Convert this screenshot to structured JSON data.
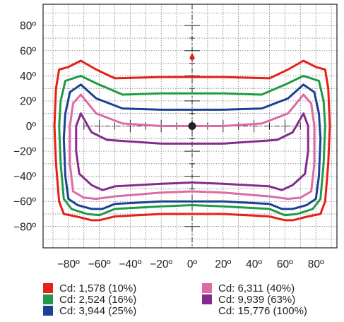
{
  "chart_data": {
    "type": "line",
    "title": "",
    "xlabel": "",
    "ylabel": "",
    "xlim": [
      -95,
      95
    ],
    "ylim": [
      -97,
      97
    ],
    "grid": true,
    "x_ticks": [
      {
        "value": -80,
        "label": "−80º"
      },
      {
        "value": -60,
        "label": "−60º"
      },
      {
        "value": -40,
        "label": "−40º"
      },
      {
        "value": -20,
        "label": "−20º"
      },
      {
        "value": 0,
        "label": "0º"
      },
      {
        "value": 20,
        "label": "20º"
      },
      {
        "value": 40,
        "label": "40º"
      },
      {
        "value": 60,
        "label": "60º"
      },
      {
        "value": 80,
        "label": "80º"
      }
    ],
    "y_ticks": [
      {
        "value": 80,
        "label": "80º"
      },
      {
        "value": 60,
        "label": "60º"
      },
      {
        "value": 40,
        "label": "40º"
      },
      {
        "value": 20,
        "label": "20º"
      },
      {
        "value": 0,
        "label": "0º"
      },
      {
        "value": -20,
        "label": "−20º"
      },
      {
        "value": -40,
        "label": "−40º"
      },
      {
        "value": -60,
        "label": "−60º"
      },
      {
        "value": -80,
        "label": "−80º"
      }
    ],
    "center_point": {
      "x": 0,
      "y": 0,
      "color": "#222222"
    },
    "max_point": {
      "x": 0,
      "y": 55,
      "color": "#e32119"
    },
    "legend_position": "bottom",
    "series": [
      {
        "name": "Cd: 1,578 (10%)",
        "color": "#e32119",
        "points": [
          [
            -72,
            52
          ],
          [
            -80,
            47
          ],
          [
            -86,
            45
          ],
          [
            -88,
            30
          ],
          [
            -89,
            0
          ],
          [
            -88,
            -30
          ],
          [
            -86,
            -60
          ],
          [
            -83,
            -70
          ],
          [
            -75,
            -72
          ],
          [
            -65,
            -75
          ],
          [
            -60,
            -75
          ],
          [
            -50,
            -72
          ],
          [
            -20,
            -70
          ],
          [
            0,
            -70
          ],
          [
            20,
            -70
          ],
          [
            50,
            -72
          ],
          [
            60,
            -75
          ],
          [
            65,
            -75
          ],
          [
            75,
            -72
          ],
          [
            83,
            -70
          ],
          [
            86,
            -60
          ],
          [
            88,
            -30
          ],
          [
            89,
            0
          ],
          [
            88,
            30
          ],
          [
            86,
            45
          ],
          [
            80,
            47
          ],
          [
            72,
            52
          ],
          [
            62,
            45
          ],
          [
            50,
            38
          ],
          [
            20,
            39
          ],
          [
            0,
            39
          ],
          [
            -20,
            39
          ],
          [
            -50,
            38
          ],
          [
            -62,
            45
          ],
          [
            -72,
            52
          ]
        ]
      },
      {
        "name": "Cd: 2,524 (16%)",
        "color": "#1f9a46",
        "points": [
          [
            -72,
            40
          ],
          [
            -82,
            36
          ],
          [
            -85,
            20
          ],
          [
            -86,
            0
          ],
          [
            -85,
            -30
          ],
          [
            -83,
            -58
          ],
          [
            -78,
            -66
          ],
          [
            -68,
            -70
          ],
          [
            -60,
            -71
          ],
          [
            -50,
            -66
          ],
          [
            -20,
            -64
          ],
          [
            0,
            -63
          ],
          [
            20,
            -64
          ],
          [
            50,
            -66
          ],
          [
            60,
            -71
          ],
          [
            68,
            -70
          ],
          [
            78,
            -66
          ],
          [
            83,
            -58
          ],
          [
            85,
            -30
          ],
          [
            86,
            0
          ],
          [
            85,
            20
          ],
          [
            82,
            36
          ],
          [
            72,
            40
          ],
          [
            62,
            34
          ],
          [
            45,
            25
          ],
          [
            20,
            26
          ],
          [
            0,
            26
          ],
          [
            -20,
            26
          ],
          [
            -45,
            25
          ],
          [
            -62,
            34
          ],
          [
            -72,
            40
          ]
        ]
      },
      {
        "name": "Cd: 3,944 (25%)",
        "color": "#1d3f95",
        "points": [
          [
            -72,
            33
          ],
          [
            -79,
            27
          ],
          [
            -82,
            10
          ],
          [
            -83,
            -10
          ],
          [
            -82,
            -40
          ],
          [
            -80,
            -58
          ],
          [
            -74,
            -63
          ],
          [
            -65,
            -66
          ],
          [
            -58,
            -66
          ],
          [
            -50,
            -62
          ],
          [
            -20,
            -60
          ],
          [
            0,
            -60
          ],
          [
            20,
            -60
          ],
          [
            50,
            -62
          ],
          [
            58,
            -66
          ],
          [
            65,
            -66
          ],
          [
            74,
            -63
          ],
          [
            80,
            -58
          ],
          [
            82,
            -40
          ],
          [
            83,
            -10
          ],
          [
            82,
            10
          ],
          [
            79,
            27
          ],
          [
            72,
            33
          ],
          [
            62,
            22
          ],
          [
            45,
            14
          ],
          [
            20,
            13
          ],
          [
            0,
            13
          ],
          [
            -20,
            13
          ],
          [
            -45,
            14
          ],
          [
            -62,
            22
          ],
          [
            -72,
            33
          ]
        ]
      },
      {
        "name": "Cd: 6,311 (40%)",
        "color": "#dc6aa3",
        "points": [
          [
            -72,
            25
          ],
          [
            -77,
            18
          ],
          [
            -79,
            0
          ],
          [
            -79,
            -30
          ],
          [
            -77,
            -52
          ],
          [
            -70,
            -57
          ],
          [
            -62,
            -58
          ],
          [
            -50,
            -56
          ],
          [
            -20,
            -53
          ],
          [
            0,
            -52
          ],
          [
            20,
            -53
          ],
          [
            50,
            -56
          ],
          [
            62,
            -58
          ],
          [
            70,
            -57
          ],
          [
            77,
            -52
          ],
          [
            79,
            -30
          ],
          [
            79,
            0
          ],
          [
            77,
            18
          ],
          [
            72,
            25
          ],
          [
            62,
            10
          ],
          [
            45,
            2
          ],
          [
            20,
            0
          ],
          [
            0,
            0
          ],
          [
            -20,
            0
          ],
          [
            -45,
            2
          ],
          [
            -62,
            10
          ],
          [
            -72,
            25
          ]
        ]
      },
      {
        "name": "Cd: 9,939 (63%)",
        "color": "#862a8e",
        "points": [
          [
            -72,
            10
          ],
          [
            -75,
            0
          ],
          [
            -75,
            -20
          ],
          [
            -73,
            -38
          ],
          [
            -65,
            -47
          ],
          [
            -58,
            -51
          ],
          [
            -50,
            -48
          ],
          [
            -20,
            -46
          ],
          [
            0,
            -45
          ],
          [
            20,
            -46
          ],
          [
            50,
            -48
          ],
          [
            58,
            -51
          ],
          [
            65,
            -47
          ],
          [
            73,
            -38
          ],
          [
            75,
            -20
          ],
          [
            75,
            0
          ],
          [
            72,
            10
          ],
          [
            65,
            -5
          ],
          [
            55,
            -11
          ],
          [
            20,
            -14
          ],
          [
            0,
            -14
          ],
          [
            -20,
            -14
          ],
          [
            -55,
            -11
          ],
          [
            -65,
            -5
          ],
          [
            -72,
            10
          ]
        ]
      }
    ]
  },
  "legend": [
    {
      "label": "Cd: 1,578 (10%)",
      "color": "#e32119"
    },
    {
      "label": "Cd: 2,524 (16%)",
      "color": "#1f9a46"
    },
    {
      "label": "Cd: 3,944 (25%)",
      "color": "#1d3f95"
    },
    {
      "label": "Cd: 6,311 (40%)",
      "color": "#dc6aa3"
    },
    {
      "label": "Cd: 9,939 (63%)",
      "color": "#862a8e"
    },
    {
      "label": "Cd: 15,776 (100%)",
      "color": ""
    }
  ]
}
